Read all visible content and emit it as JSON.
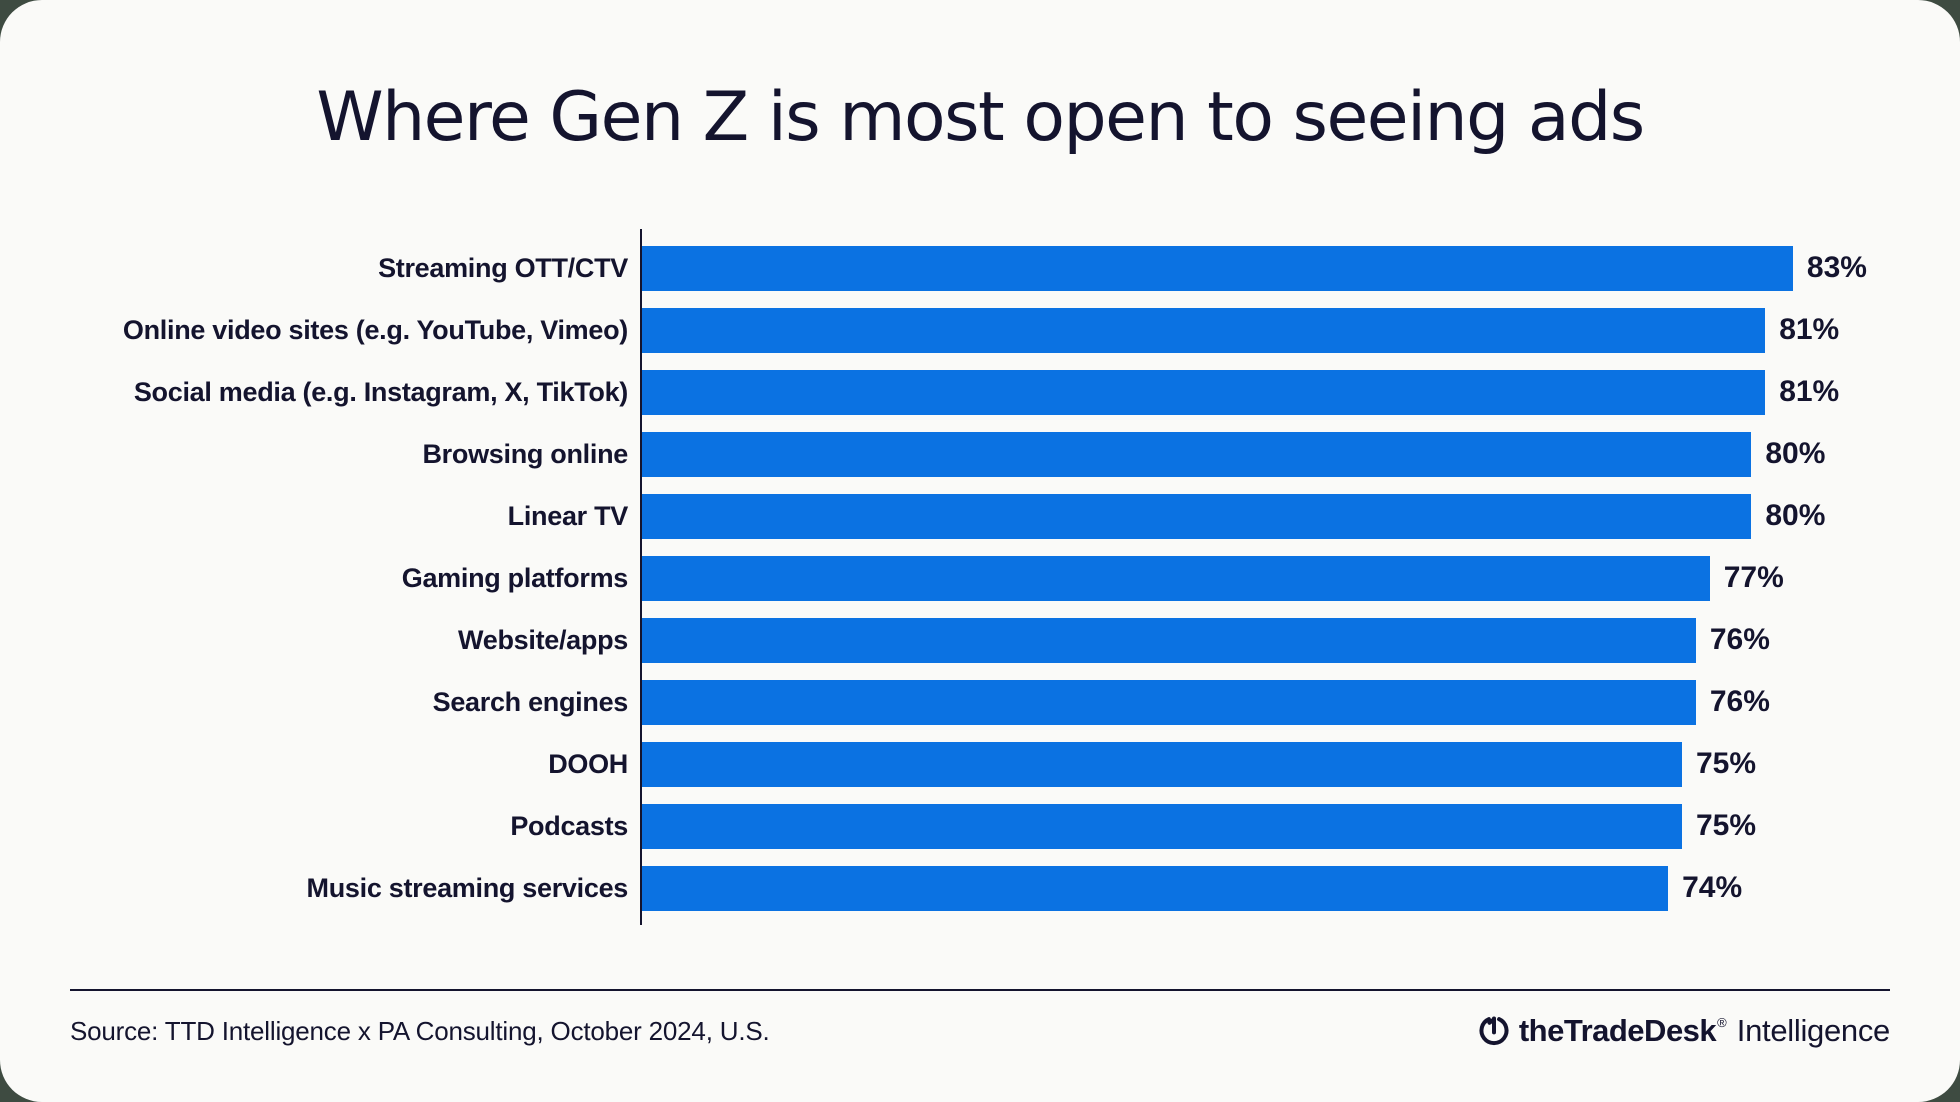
{
  "page": {
    "outside_background": "#3e4b41",
    "card_background": "#fafaf8",
    "text_color": "#14142e"
  },
  "title": "Where Gen Z is most open to seeing ads",
  "chart_data": {
    "type": "bar",
    "orientation": "horizontal",
    "title": "Where Gen Z is most open to seeing ads",
    "categories": [
      "Streaming OTT/CTV",
      "Online video sites (e.g. YouTube, Vimeo)",
      "Social media (e.g. Instagram, X, TikTok)",
      "Browsing online",
      "Linear TV",
      "Gaming platforms",
      "Website/apps",
      "Search engines",
      "DOOH",
      "Podcasts",
      "Music streaming services"
    ],
    "values": [
      83,
      81,
      81,
      80,
      80,
      77,
      76,
      76,
      75,
      75,
      74
    ],
    "value_suffix": "%",
    "bar_color": "#0b72e2",
    "xlim": [
      0,
      90
    ],
    "grid": false,
    "legend": false
  },
  "footer": {
    "source": "Source: TTD Intelligence x PA Consulting, October 2024, U.S.",
    "logo": {
      "icon": "trade-desk-logo-icon",
      "brand_bold": "theTradeDesk",
      "registered_mark": "®",
      "brand_suffix": "Intelligence"
    }
  }
}
